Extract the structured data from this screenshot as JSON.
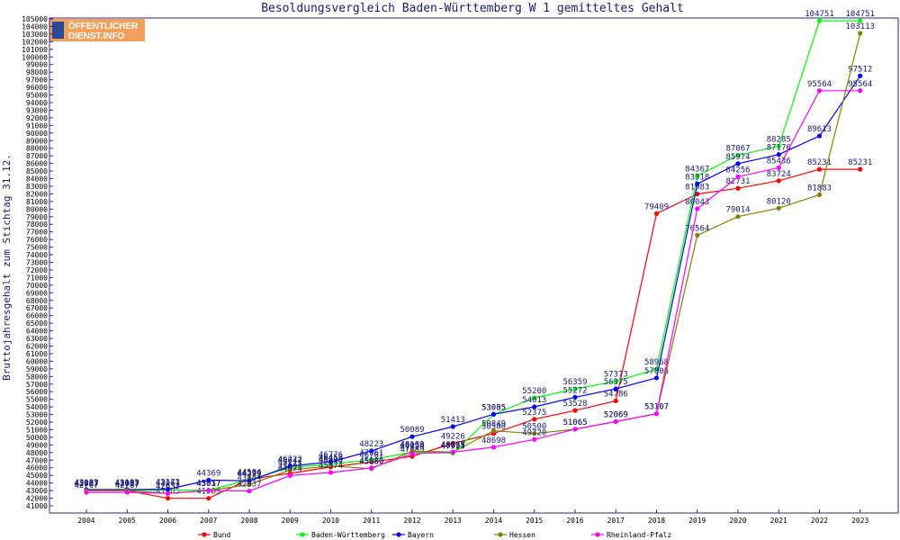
{
  "chart_data": {
    "type": "line",
    "title": "Besoldungsvergleich Baden-Württemberg W 1 gemitteltes Gehalt",
    "ylabel": "Bruttojahresgehalt zum Stichtag 31.12.",
    "xlabel": "",
    "ylim": [
      41000,
      105000
    ],
    "ytick_step": 1000,
    "grid": false,
    "legend_position": "bottom",
    "logo": {
      "line1": "ÖFFENTLICHER",
      "line2": "DIENST.INFO"
    },
    "x": [
      "2004",
      "2005",
      "2006",
      "2007",
      "2008",
      "2009",
      "2010",
      "2011",
      "2012",
      "2013",
      "2014",
      "2015",
      "2016",
      "2017",
      "2018",
      "2019",
      "2020",
      "2021",
      "2022",
      "2023"
    ],
    "series": [
      {
        "name": "Bund",
        "color": "#ff0000",
        "values": [
          42987,
          42987,
          41985,
          41985,
          44504,
          45264,
          46098,
          46761,
          47489,
          49226,
          50500,
          52375,
          53528,
          54786,
          79409,
          81983,
          82731,
          83724,
          85231,
          85231
        ]
      },
      {
        "name": "Baden-Württemberg",
        "color": "#00ff00",
        "values": [
          43057,
          43057,
          43061,
          43057,
          44399,
          46042,
          46458,
          47061,
          48054,
          47923,
          53005,
          55200,
          56359,
          57373,
          58968,
          84367,
          87067,
          88285,
          104751,
          104751
        ]
      },
      {
        "name": "Bayern",
        "color": "#0000ff",
        "values": [
          43133,
          43133,
          43173,
          44369,
          44279,
          46222,
          46776,
          48223,
          50089,
          51413,
          53035,
          54013,
          55272,
          56375,
          57806,
          83318,
          85974,
          87176,
          89613,
          97512
        ]
      },
      {
        "name": "Hessen",
        "color": "#808000",
        "values": [
          43007,
          43007,
          42637,
          43017,
          43784,
          45711,
          46223,
          45880,
          48169,
          48077,
          50849,
          50500,
          51065,
          52069,
          53107,
          76564,
          79014,
          80120,
          81883,
          103113
        ]
      },
      {
        "name": "Rheinland-Pfalz",
        "color": "#ff00ff",
        "values": [
          42767,
          42767,
          42637,
          43017,
          42937,
          44974,
          45374,
          45980,
          47829,
          48065,
          48698,
          49720,
          51065,
          52069,
          53107,
          80043,
          84256,
          85436,
          95564,
          95564
        ]
      }
    ]
  }
}
